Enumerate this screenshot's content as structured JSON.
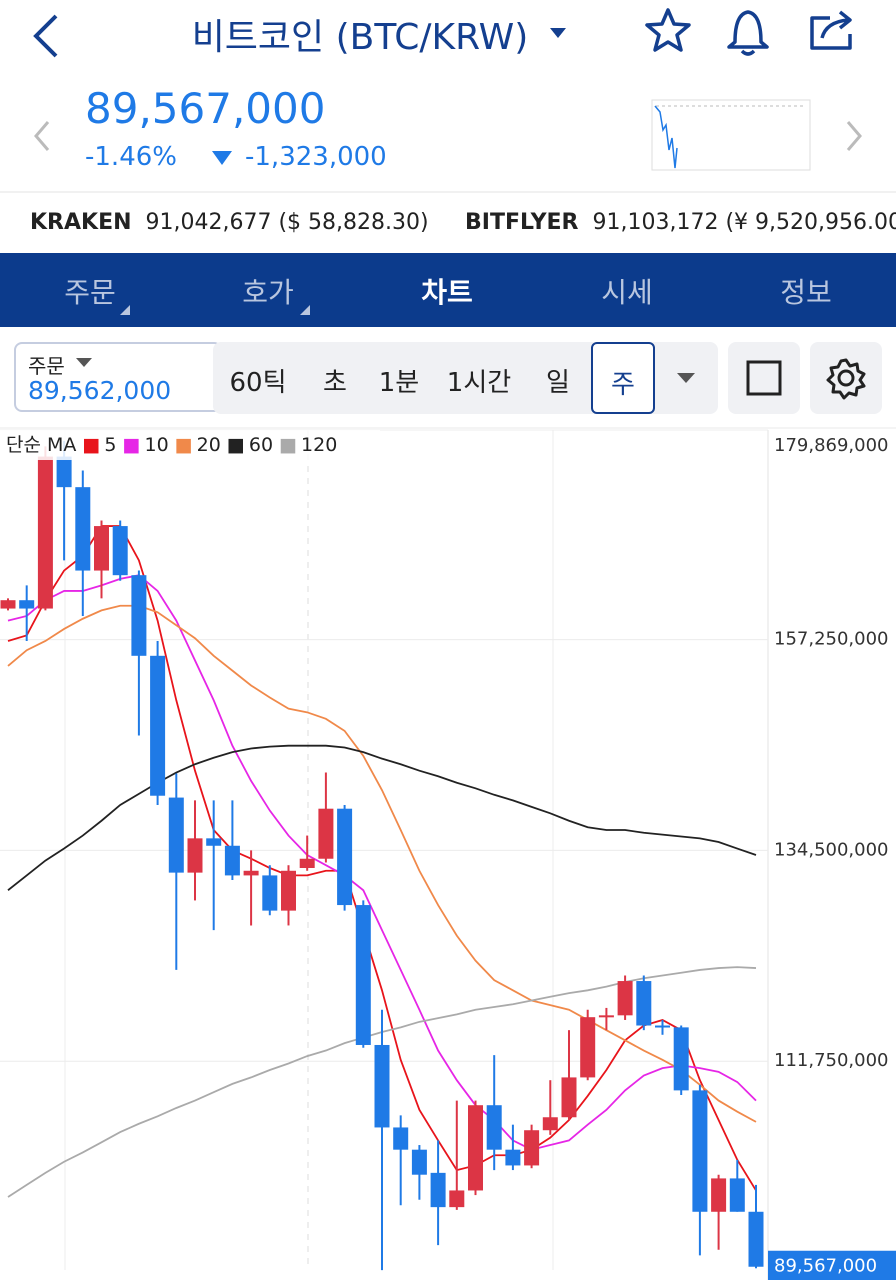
{
  "header": {
    "title": "비트코인 (BTC/KRW)"
  },
  "price": {
    "last": "89,567,000",
    "change_pct": "-1.46%",
    "change": "-1,323,000"
  },
  "exchanges": [
    {
      "name": "KRAKEN",
      "value": "91,042,677 ($ 58,828.30)"
    },
    {
      "name": "BITFLYER",
      "value": "91,103,172 (¥ 9,520,956.00)"
    }
  ],
  "tabs": [
    "주문",
    "호가",
    "차트",
    "시세",
    "정보"
  ],
  "order": {
    "label": "주문",
    "value": "89,562,000"
  },
  "intervals": [
    "60틱",
    "초",
    "1분",
    "1시간",
    "일",
    "주"
  ],
  "chart_data": {
    "type": "candlestick",
    "legend_title": "단순 MA",
    "up_color": "#dc3545",
    "down_color": "#1f7ae6",
    "ylim": [
      89000000,
      179869000
    ],
    "yticks": [
      {
        "value": 179869000,
        "label": "179,869,000"
      },
      {
        "value": 157250000,
        "label": "157,250,000"
      },
      {
        "value": 134500000,
        "label": "134,500,000"
      },
      {
        "value": 111750000,
        "label": "111,750,000"
      }
    ],
    "grid": true,
    "open": [
      160600000,
      161500000,
      160600000,
      177000000,
      173700000,
      164700000,
      169500000,
      164200000,
      155500000,
      140200000,
      132100000,
      135800000,
      135000000,
      131800000,
      131800000,
      128000000,
      132600000,
      133600000,
      139000000,
      128600000,
      113500000,
      104600000,
      102200000,
      99700000,
      96000000,
      97800000,
      107000000,
      102200000,
      100500000,
      104300000,
      105700000,
      110000000,
      116500000,
      116700000,
      120400000,
      115600000,
      115400000,
      108600000,
      95500000,
      99100000,
      95500000
    ],
    "high": [
      161700000,
      163100000,
      178100000,
      178700000,
      175500000,
      170100000,
      170100000,
      164700000,
      157100000,
      142800000,
      139900000,
      139900000,
      139900000,
      134500000,
      132900000,
      132900000,
      136100000,
      142900000,
      139400000,
      129100000,
      117300000,
      105900000,
      102700000,
      103200000,
      107500000,
      107500000,
      112400000,
      104900000,
      104900000,
      109700000,
      115100000,
      117300000,
      117500000,
      121000000,
      121000000,
      116200000,
      115600000,
      109200000,
      99500000,
      101100000,
      98400000
    ],
    "low": [
      160400000,
      157100000,
      160400000,
      165800000,
      159800000,
      161700000,
      163600000,
      146900000,
      139400000,
      121600000,
      129100000,
      125900000,
      131300000,
      126400000,
      127500000,
      126400000,
      132300000,
      133200000,
      128000000,
      113200000,
      89200000,
      96200000,
      96800000,
      91900000,
      95700000,
      97300000,
      100000000,
      100000000,
      100200000,
      103800000,
      105400000,
      109700000,
      115100000,
      116200000,
      115100000,
      114600000,
      108100000,
      90800000,
      91400000,
      95500000,
      89400000
    ],
    "close": [
      161500000,
      160600000,
      177000000,
      173700000,
      164700000,
      169500000,
      164200000,
      155500000,
      140400000,
      132100000,
      135800000,
      135000000,
      131800000,
      132300000,
      128000000,
      132300000,
      133600000,
      139000000,
      128600000,
      113500000,
      104600000,
      102200000,
      99500000,
      96000000,
      97800000,
      107000000,
      102200000,
      100500000,
      104300000,
      105700000,
      110000000,
      116500000,
      116700000,
      120400000,
      115600000,
      115400000,
      108600000,
      95500000,
      99100000,
      95500000,
      89567000
    ],
    "series": [
      {
        "name": "5",
        "color": "#e8141b",
        "values": [
          157100000,
          157700000,
          161500000,
          164700000,
          166300000,
          169500000,
          169500000,
          165800000,
          159300000,
          150700000,
          143100000,
          136700000,
          134500000,
          133600000,
          132600000,
          131800000,
          131800000,
          132300000,
          132300000,
          125900000,
          119400000,
          111900000,
          106500000,
          103200000,
          100000000,
          100500000,
          101600000,
          101600000,
          102200000,
          103500000,
          105400000,
          108000000,
          110800000,
          114000000,
          115600000,
          116200000,
          115100000,
          109700000,
          105400000,
          101100000,
          97800000
        ]
      },
      {
        "name": "10",
        "color": "#e626e6",
        "values": [
          159300000,
          159800000,
          161500000,
          162500000,
          162500000,
          163100000,
          163800000,
          164200000,
          162500000,
          159300000,
          155000000,
          150700000,
          145800000,
          142000000,
          138800000,
          136100000,
          134000000,
          132900000,
          131800000,
          130200000,
          125900000,
          121600000,
          117300000,
          112900000,
          109700000,
          107000000,
          105400000,
          103200000,
          102200000,
          102700000,
          103200000,
          104900000,
          106500000,
          108600000,
          110200000,
          111000000,
          111300000,
          111000000,
          110600000,
          109500000,
          107500000
        ]
      },
      {
        "name": "20",
        "color": "#f0894a",
        "values": [
          154400000,
          156100000,
          157100000,
          158400000,
          159500000,
          160400000,
          160900000,
          160900000,
          160200000,
          158800000,
          157400000,
          155500000,
          153900000,
          152300000,
          151000000,
          149800000,
          149400000,
          148700000,
          147400000,
          144700000,
          141000000,
          136700000,
          132300000,
          128600000,
          125300000,
          122600000,
          120500000,
          119400000,
          118300000,
          117800000,
          117300000,
          116200000,
          115100000,
          114000000,
          112900000,
          111900000,
          110800000,
          109200000,
          107500000,
          106300000,
          105200000
        ]
      },
      {
        "name": "60",
        "color": "#222222",
        "values": [
          130200000,
          131800000,
          133400000,
          134700000,
          136100000,
          137700000,
          139400000,
          140600000,
          141800000,
          142900000,
          143800000,
          144500000,
          145100000,
          145500000,
          145700000,
          145800000,
          145800000,
          145800000,
          145600000,
          145100000,
          144400000,
          143800000,
          143100000,
          142500000,
          141800000,
          141200000,
          140500000,
          139900000,
          139200000,
          138500000,
          137700000,
          137000000,
          136700000,
          136700000,
          136400000,
          136200000,
          136000000,
          135800000,
          135400000,
          134700000,
          134000000
        ]
      },
      {
        "name": "120",
        "color": "#aaaaaa",
        "values": [
          97100000,
          98400000,
          99700000,
          100900000,
          101900000,
          103000000,
          104100000,
          105000000,
          105800000,
          106700000,
          107500000,
          108400000,
          109300000,
          110000000,
          110800000,
          111500000,
          112300000,
          112900000,
          113700000,
          114300000,
          114900000,
          115400000,
          116000000,
          116400000,
          116800000,
          117300000,
          117600000,
          117900000,
          118300000,
          118700000,
          119100000,
          119400000,
          119800000,
          120300000,
          120700000,
          121000000,
          121300000,
          121600000,
          121800000,
          121900000,
          121800000
        ]
      }
    ]
  }
}
